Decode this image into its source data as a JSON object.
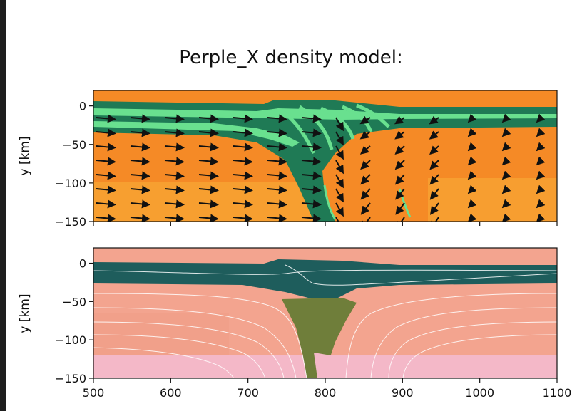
{
  "figure": {
    "title": "Perple_X density model:"
  },
  "chart_data": [
    {
      "type": "heatmap",
      "panel": "top",
      "title": "",
      "xlabel": "",
      "ylabel": "y [km]",
      "xlim": [
        500,
        1100
      ],
      "ylim": [
        -150,
        20
      ],
      "xticks": [
        "500",
        "600",
        "700",
        "800",
        "900",
        "1000",
        "1100"
      ],
      "xticks_shown": false,
      "yticks": [
        "0",
        "−50",
        "−100",
        "−150"
      ],
      "ytick_values": [
        0,
        -50,
        -100,
        -150
      ],
      "overlay": "velocity-arrows",
      "colors": {
        "mantle": "#f58a26",
        "mantle_light": "#f7a132",
        "crust_dark": "#1f7a55",
        "crust_light": "#69e08f"
      }
    },
    {
      "type": "heatmap",
      "panel": "bottom",
      "title": "",
      "xlabel": "",
      "ylabel": "y [km]",
      "xlim": [
        500,
        1100
      ],
      "ylim": [
        -150,
        20
      ],
      "xticks": [
        "500",
        "600",
        "700",
        "800",
        "900",
        "1000",
        "1100"
      ],
      "xtick_values": [
        500,
        600,
        700,
        800,
        900,
        1000,
        1100
      ],
      "yticks": [
        "0",
        "−50",
        "−100",
        "−150"
      ],
      "ytick_values": [
        0,
        -50,
        -100,
        -150
      ],
      "overlay": "streamlines",
      "colors": {
        "mantle": "#f3a48f",
        "mantle_deep": "#f4b8c8",
        "crust": "#1e5d5c",
        "wedge": "#6f7e3a"
      }
    }
  ]
}
